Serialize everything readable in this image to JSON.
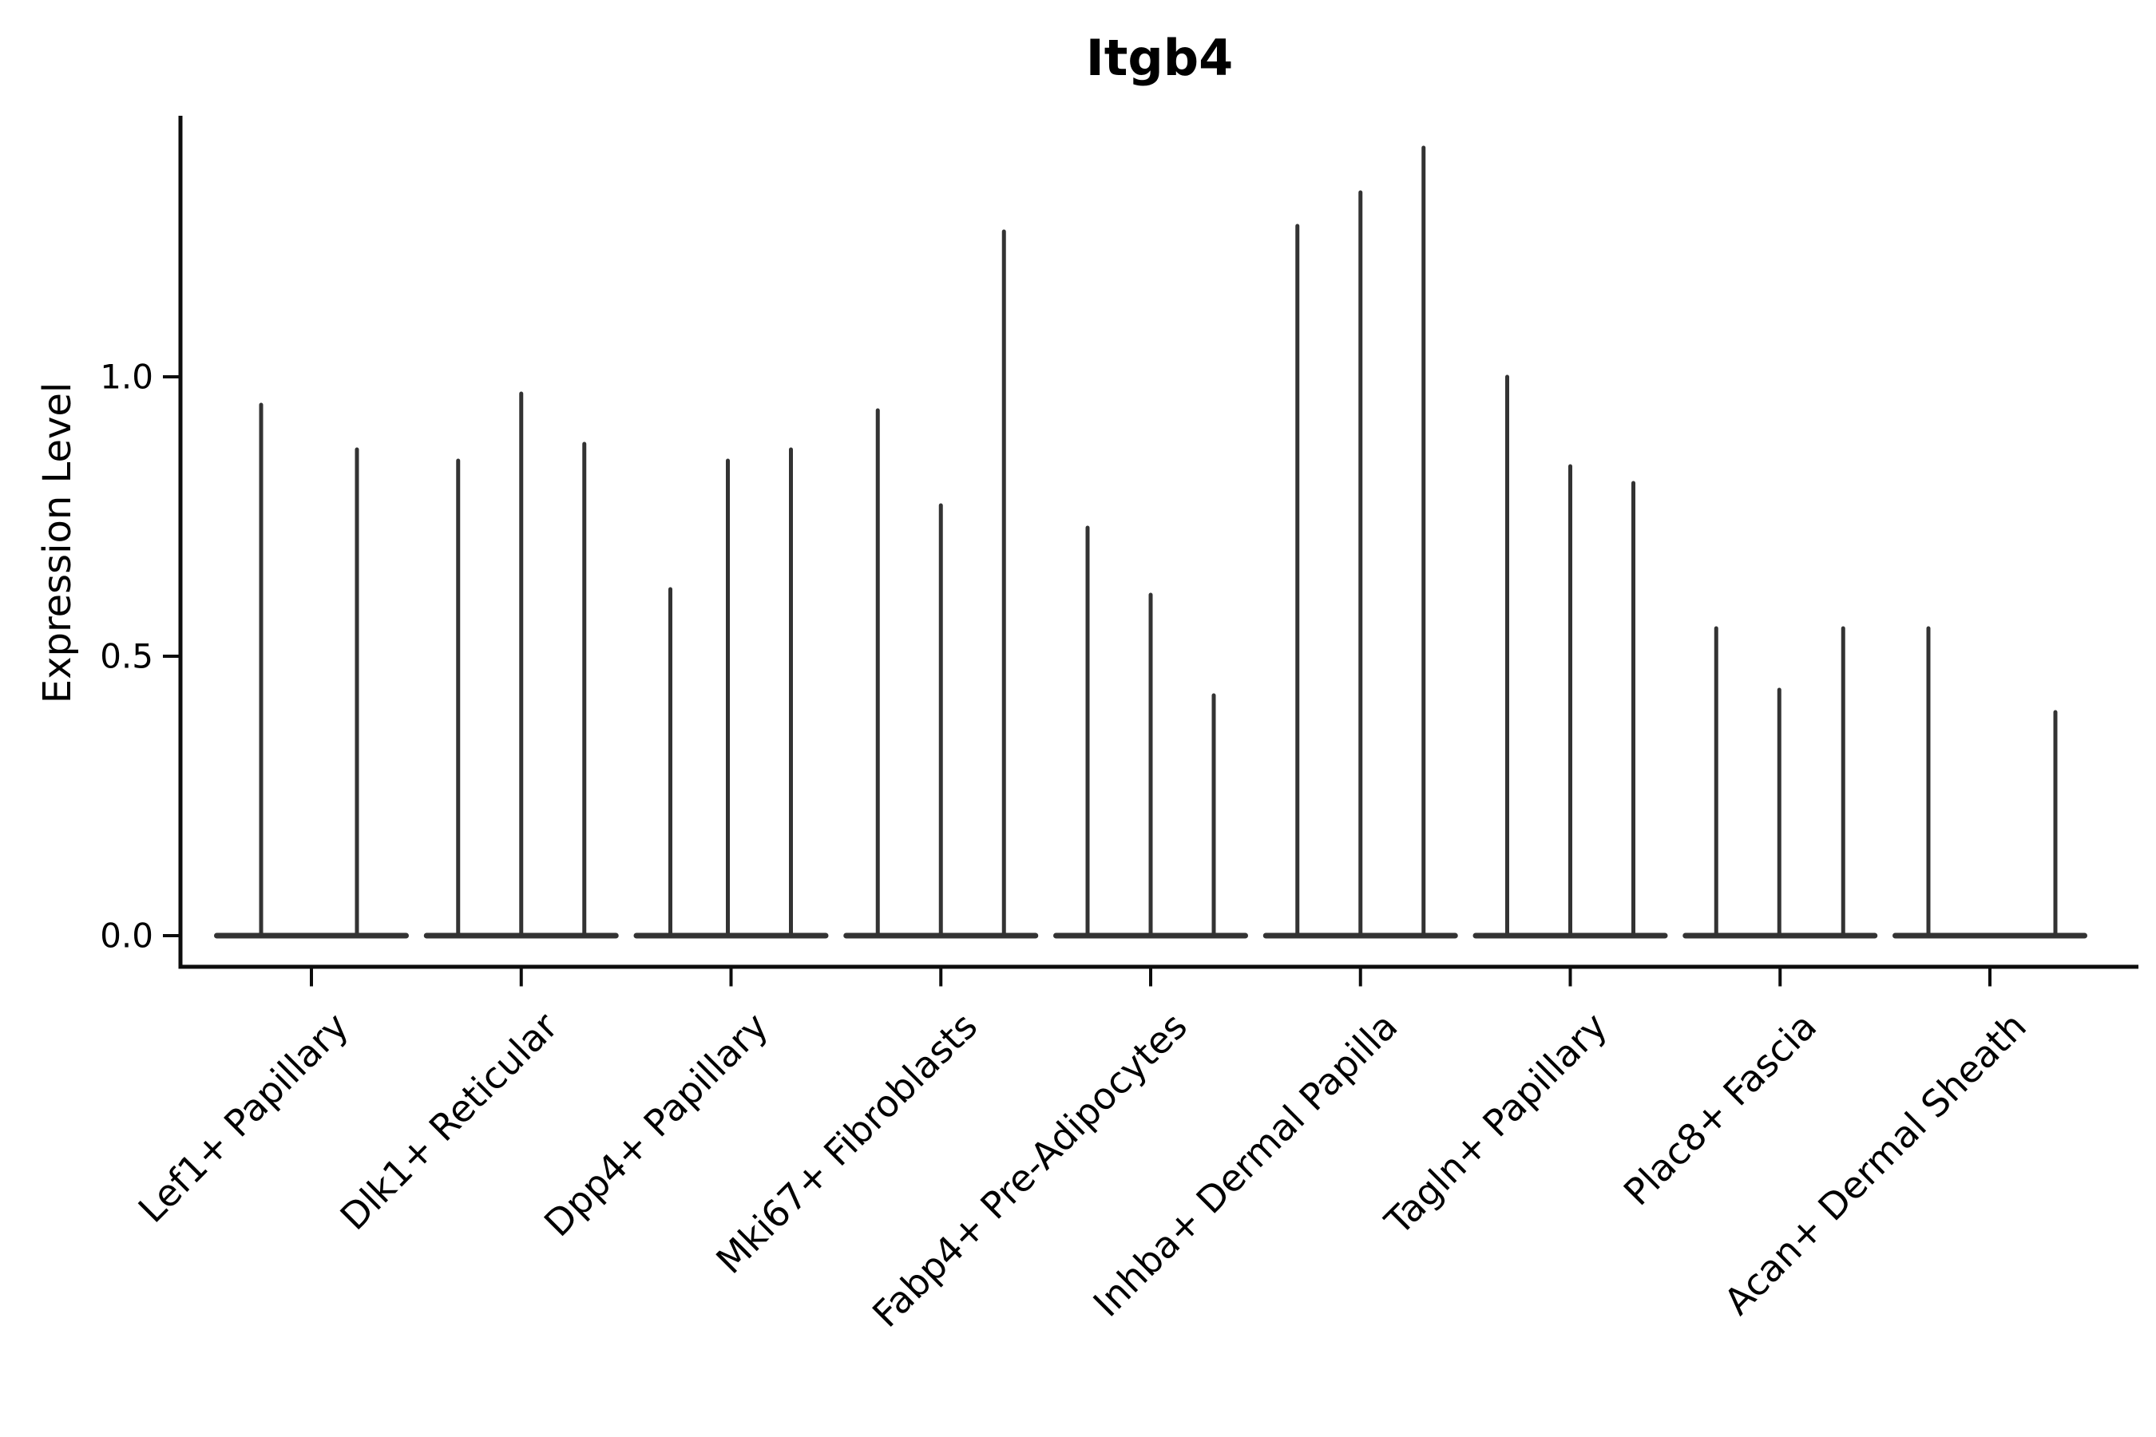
{
  "chart_data": {
    "type": "violin",
    "title": "Itgb4",
    "ylabel": "Expression Level",
    "xlabel": "",
    "grid": false,
    "legend": "none",
    "ylim": [
      -0.06,
      1.47
    ],
    "ytick_labels": [
      "0.0",
      "0.5",
      "1.0"
    ],
    "ytick_values": [
      0.0,
      0.5,
      1.0
    ],
    "categories": [
      "Lef1+ Papillary",
      "Dlk1+ Reticular",
      "Dpp4+ Papillary",
      "Mki67+ Fibroblasts",
      "Fabp4+ Pre-Adipocytes",
      "Inhba+ Dermal Papilla",
      "Tagln+ Papillary",
      "Plac8+ Fascia",
      "Acan+ Dermal Sheath"
    ],
    "description": "Each category shows 2-3 needle-thin violins: a flat mass at expression 0 with a thin spike up to the max expression value.",
    "violins": [
      {
        "category": "Lef1+ Papillary",
        "spikes": [
          {
            "offset": -63,
            "max": 0.95
          },
          {
            "offset": 57,
            "max": 0.87
          }
        ]
      },
      {
        "category": "Dlk1+ Reticular",
        "spikes": [
          {
            "offset": -79,
            "max": 0.85
          },
          {
            "offset": 0,
            "max": 0.97
          },
          {
            "offset": 79,
            "max": 0.88
          }
        ]
      },
      {
        "category": "Dpp4+ Papillary",
        "spikes": [
          {
            "offset": -76,
            "max": 0.62
          },
          {
            "offset": -4,
            "max": 0.85
          },
          {
            "offset": 75,
            "max": 0.87
          }
        ]
      },
      {
        "category": "Mki67+ Fibroblasts",
        "spikes": [
          {
            "offset": -79,
            "max": 0.94
          },
          {
            "offset": 0,
            "max": 0.77
          },
          {
            "offset": 79,
            "max": 1.26
          }
        ]
      },
      {
        "category": "Fabp4+ Pre-Adipocytes",
        "spikes": [
          {
            "offset": -79,
            "max": 0.73
          },
          {
            "offset": 0,
            "max": 0.61
          },
          {
            "offset": 79,
            "max": 0.43
          }
        ]
      },
      {
        "category": "Inhba+ Dermal Papilla",
        "spikes": [
          {
            "offset": -79,
            "max": 1.27
          },
          {
            "offset": 0,
            "max": 1.33
          },
          {
            "offset": 79,
            "max": 1.41
          }
        ]
      },
      {
        "category": "Tagln+ Papillary",
        "spikes": [
          {
            "offset": -79,
            "max": 1.0
          },
          {
            "offset": 0,
            "max": 0.84
          },
          {
            "offset": 79,
            "max": 0.81
          }
        ]
      },
      {
        "category": "Plac8+ Fascia",
        "spikes": [
          {
            "offset": -80,
            "max": 0.55
          },
          {
            "offset": -1,
            "max": 0.44
          },
          {
            "offset": 79,
            "max": 0.55
          }
        ]
      },
      {
        "category": "Acan+ Dermal Sheath",
        "spikes": [
          {
            "offset": -77,
            "max": 0.55
          },
          {
            "offset": 82,
            "max": 0.4
          }
        ]
      }
    ],
    "colors": {
      "violin": "#333333",
      "axis": "#0d0d0d",
      "text": "#000000",
      "background": "#ffffff"
    }
  }
}
